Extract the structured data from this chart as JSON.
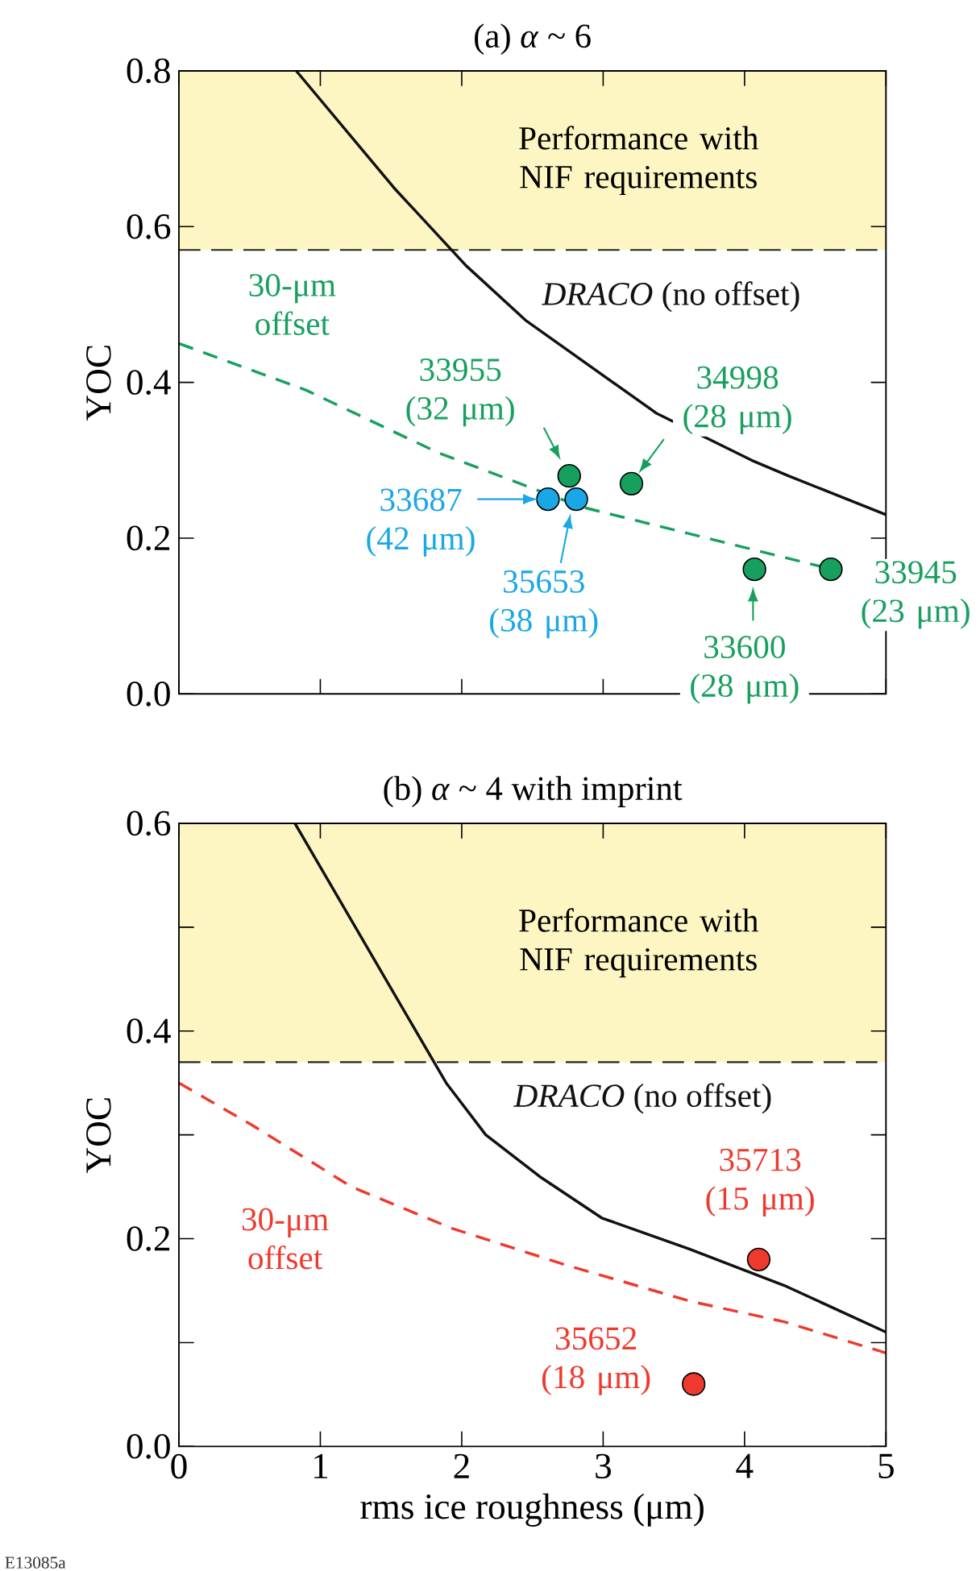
{
  "chart_data": [
    {
      "type": "scatter",
      "title": "(a) *α* ~ 6",
      "ylabel": "YOC",
      "xlim": [
        0,
        5
      ],
      "ylim": [
        0,
        0.8
      ],
      "xticks": [
        0,
        1,
        2,
        3,
        4,
        5
      ],
      "yticks": [
        {
          "value": 0,
          "label": "0.0"
        },
        {
          "value": 0.2,
          "label": "0.2"
        },
        {
          "value": 0.4,
          "label": "0.4"
        },
        {
          "value": 0.6,
          "label": "0.6"
        },
        {
          "value": 0.8,
          "label": "0.8"
        }
      ],
      "tick_labels": "y",
      "bands": [
        {
          "axis": "y",
          "from": 0.57,
          "to": 0.8,
          "label": "Performance with NIF requirements",
          "color": "#fdf6c3"
        }
      ],
      "ref_lines": [
        {
          "axis": "y",
          "value": 0.57,
          "color": "#222222",
          "line_style": "dashed"
        }
      ],
      "series": [
        {
          "name": "*DRACO* (no offset)",
          "type": "line",
          "color": "#111111",
          "line_style": "solid",
          "marker": "none",
          "x": [
            0.83,
            1.52,
            2.03,
            2.45,
            3.38,
            4.05,
            4.31,
            5
          ],
          "values": [
            0.8,
            0.65,
            0.55,
            0.48,
            0.36,
            0.3,
            0.28,
            0.23
          ]
        },
        {
          "name": "30-μm offset",
          "type": "line",
          "color": "#17a05d",
          "line_style": "dashed",
          "marker": "none",
          "x": [
            0,
            0.9,
            1.83,
            2.85,
            4.62
          ],
          "values": [
            0.45,
            0.39,
            0.31,
            0.24,
            0.16
          ]
        },
        {
          "type": "scatter",
          "color": "#17a05d",
          "marker": "circle",
          "x": [
            2.76,
            3.2,
            4.07,
            4.61
          ],
          "values": [
            0.28,
            0.27,
            0.16,
            0.16
          ]
        },
        {
          "type": "scatter",
          "color": "#1aa7e6",
          "marker": "circle",
          "x": [
            2.61,
            2.81
          ],
          "values": [
            0.25,
            0.25
          ]
        }
      ],
      "annotations": [
        {
          "text": "33955 (32 μm)",
          "x": 2.76,
          "y": 0.28
        },
        {
          "text": "34998 (28 μm)",
          "x": 3.2,
          "y": 0.27
        },
        {
          "text": "33687 (42 μm)",
          "x": 2.61,
          "y": 0.25
        },
        {
          "text": "35653 (38 μm)",
          "x": 2.81,
          "y": 0.25
        },
        {
          "text": "33600 (28 μm)",
          "x": 4.07,
          "y": 0.16
        },
        {
          "text": "33945 (23 μm)",
          "x": 4.61,
          "y": 0.16
        }
      ]
    },
    {
      "type": "scatter",
      "title": "(b) *α* ~ 4 with imprint",
      "xlabel": "rms ice roughness (μm)",
      "ylabel": "YOC",
      "xlim": [
        0,
        5
      ],
      "ylim": [
        0,
        0.6
      ],
      "xticks": [
        0,
        1,
        2,
        3,
        4,
        5
      ],
      "yticks": [
        {
          "value": 0,
          "label": "0.0"
        },
        {
          "value": 0.1,
          "label": null
        },
        {
          "value": 0.2,
          "label": "0.2"
        },
        {
          "value": 0.3,
          "label": null
        },
        {
          "value": 0.4,
          "label": "0.4"
        },
        {
          "value": 0.5,
          "label": null
        },
        {
          "value": 0.6,
          "label": "0.6"
        }
      ],
      "bands": [
        {
          "axis": "y",
          "from": 0.37,
          "to": 0.6,
          "label": "Performance with NIF requirements",
          "color": "#fdf6c3"
        }
      ],
      "ref_lines": [
        {
          "axis": "y",
          "value": 0.37,
          "color": "#222222",
          "line_style": "dashed"
        }
      ],
      "series": [
        {
          "name": "*DRACO* (no offset)",
          "type": "line",
          "color": "#111111",
          "line_style": "solid",
          "marker": "none",
          "x": [
            0.82,
            1.89,
            2.17,
            2.55,
            2.99,
            3.61,
            4.28,
            5
          ],
          "values": [
            0.6,
            0.35,
            0.3,
            0.26,
            0.22,
            0.19,
            0.155,
            0.11
          ]
        },
        {
          "name": "30-μm offset",
          "type": "line",
          "color": "#ee3a2e",
          "line_style": "dashed",
          "marker": "none",
          "x": [
            0,
            0.51,
            1.22,
            1.93,
            2.73,
            3.61,
            4.28,
            5
          ],
          "values": [
            0.35,
            0.31,
            0.25,
            0.21,
            0.175,
            0.14,
            0.12,
            0.09
          ]
        },
        {
          "type": "scatter",
          "color": "#ee3a2e",
          "marker": "circle",
          "x": [
            3.64,
            4.1
          ],
          "values": [
            0.06,
            0.18
          ]
        }
      ],
      "annotations": [
        {
          "text": "35652 (18 μm)",
          "x": 3.64,
          "y": 0.06
        },
        {
          "text": "35713 (15 μm)",
          "x": 4.1,
          "y": 0.18
        },
        "E13085a"
      ]
    }
  ]
}
